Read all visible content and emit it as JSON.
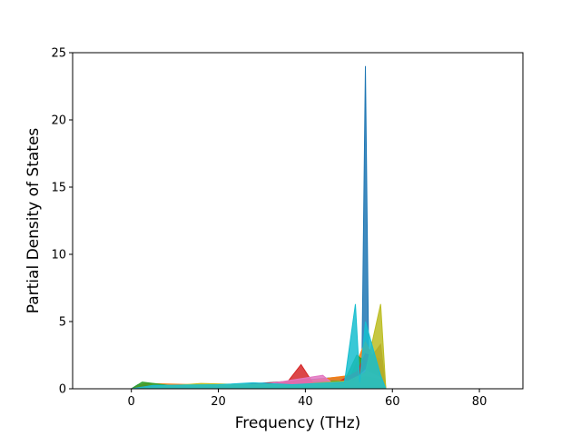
{
  "chart_data": {
    "type": "area",
    "title": "",
    "xlabel": "Frequency (THz)",
    "ylabel": "Partial Density of States",
    "xlim": [
      -13.5,
      90
    ],
    "ylim": [
      0,
      25
    ],
    "xticks": [
      0,
      20,
      40,
      60,
      80
    ],
    "yticks": [
      0,
      5,
      10,
      15,
      20,
      25
    ],
    "grid": false,
    "legend": "none",
    "series": [
      {
        "color": "#1f77b4",
        "values": [
          [
            -8.5,
            0
          ],
          [
            0,
            0
          ],
          [
            1.5,
            0.3
          ],
          [
            8,
            0.15
          ],
          [
            20,
            0.2
          ],
          [
            38,
            0.6
          ],
          [
            49,
            0.9
          ],
          [
            51.5,
            0.5
          ],
          [
            53,
            2
          ],
          [
            53.8,
            24
          ],
          [
            54.6,
            1
          ],
          [
            57,
            0.5
          ],
          [
            58.5,
            0
          ],
          [
            85.5,
            0
          ]
        ]
      },
      {
        "color": "#ff7f0e",
        "values": [
          [
            -8.5,
            0
          ],
          [
            0,
            0
          ],
          [
            3,
            0.4
          ],
          [
            15,
            0.3
          ],
          [
            26,
            0.25
          ],
          [
            33,
            0.3
          ],
          [
            50.5,
            1
          ],
          [
            53.8,
            3.5
          ],
          [
            57.3,
            1.2
          ],
          [
            58.5,
            0
          ],
          [
            85.5,
            0
          ]
        ]
      },
      {
        "color": "#2ca02c",
        "values": [
          [
            -8.5,
            0
          ],
          [
            0,
            0
          ],
          [
            2.5,
            0.5
          ],
          [
            10,
            0.2
          ],
          [
            30,
            0.3
          ],
          [
            49,
            0.6
          ],
          [
            51.8,
            2.5
          ],
          [
            53.8,
            2
          ],
          [
            57.3,
            1.5
          ],
          [
            58.5,
            0
          ],
          [
            85.5,
            0
          ]
        ]
      },
      {
        "color": "#d62728",
        "values": [
          [
            -8.5,
            0
          ],
          [
            0,
            0
          ],
          [
            4,
            0.2
          ],
          [
            20,
            0.15
          ],
          [
            36,
            0.55
          ],
          [
            39,
            1.8
          ],
          [
            42,
            0.3
          ],
          [
            47,
            0.4
          ],
          [
            52,
            1.3
          ],
          [
            53.8,
            2.6
          ],
          [
            57.3,
            2.2
          ],
          [
            58.5,
            0
          ],
          [
            85.5,
            0
          ]
        ]
      },
      {
        "color": "#9467bd",
        "values": [
          [
            -8.5,
            0
          ],
          [
            0,
            0
          ],
          [
            6,
            0.2
          ],
          [
            25,
            0.2
          ],
          [
            41,
            0.35
          ],
          [
            45,
            0.2
          ],
          [
            51,
            0.4
          ],
          [
            53.8,
            1.5
          ],
          [
            57.3,
            1
          ],
          [
            58.5,
            0
          ],
          [
            85.5,
            0
          ]
        ]
      },
      {
        "color": "#8c564b",
        "values": [
          [
            -8.5,
            0
          ],
          [
            0,
            0
          ],
          [
            7,
            0.15
          ],
          [
            24,
            0.2
          ],
          [
            40,
            0.3
          ],
          [
            52,
            0.6
          ],
          [
            53.8,
            1.8
          ],
          [
            57.3,
            3.3
          ],
          [
            58.5,
            0
          ],
          [
            85.5,
            0
          ]
        ]
      },
      {
        "color": "#e377c2",
        "values": [
          [
            -8.5,
            0
          ],
          [
            0,
            0
          ],
          [
            9,
            0.2
          ],
          [
            28,
            0.2
          ],
          [
            44,
            1
          ],
          [
            47,
            0.2
          ],
          [
            51,
            0.5
          ],
          [
            53.8,
            1.4
          ],
          [
            57.3,
            0.8
          ],
          [
            58.5,
            0
          ],
          [
            85.5,
            0
          ]
        ]
      },
      {
        "color": "#7f7f7f",
        "values": [
          [
            -8.5,
            0
          ],
          [
            0,
            0
          ],
          [
            12,
            0.15
          ],
          [
            32,
            0.2
          ],
          [
            48,
            0.3
          ],
          [
            53.8,
            0.9
          ],
          [
            57.3,
            0.7
          ],
          [
            58.5,
            0
          ],
          [
            85.5,
            0
          ]
        ]
      },
      {
        "color": "#bcbd22",
        "values": [
          [
            -8.5,
            0
          ],
          [
            0,
            0
          ],
          [
            16,
            0.4
          ],
          [
            27,
            0.3
          ],
          [
            38,
            0.3
          ],
          [
            50,
            0.6
          ],
          [
            53.8,
            1.2
          ],
          [
            57.3,
            6.3
          ],
          [
            58.5,
            0
          ],
          [
            85.5,
            0
          ]
        ]
      },
      {
        "color": "#17becf",
        "values": [
          [
            -8.5,
            0
          ],
          [
            0,
            0
          ],
          [
            5,
            0.25
          ],
          [
            20,
            0.3
          ],
          [
            28,
            0.45
          ],
          [
            37,
            0.3
          ],
          [
            49,
            0.5
          ],
          [
            51.5,
            6.3
          ],
          [
            52.5,
            0.5
          ],
          [
            53.8,
            5
          ],
          [
            57.3,
            1
          ],
          [
            58.5,
            0
          ],
          [
            85.5,
            0
          ]
        ]
      }
    ]
  }
}
